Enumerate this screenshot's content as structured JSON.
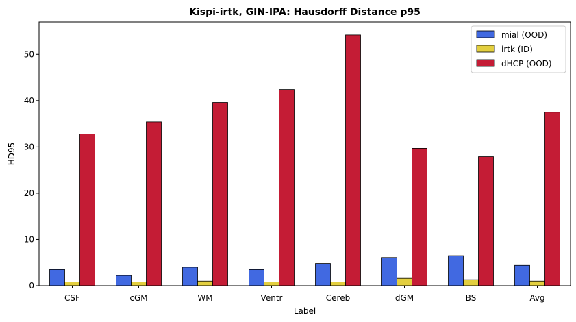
{
  "chart_data": {
    "type": "bar",
    "title": "Kispi-irtk, GIN-IPA: Hausdorff Distance p95",
    "xlabel": "Label",
    "ylabel": "HD95",
    "ylim": [
      0,
      57
    ],
    "yticks": [
      0,
      10,
      20,
      30,
      40,
      50
    ],
    "grid": false,
    "legend_position": "top-right",
    "categories": [
      "CSF",
      "cGM",
      "WM",
      "Ventr",
      "Cereb",
      "dGM",
      "BS",
      "Avg"
    ],
    "series": [
      {
        "name": "mial (OOD)",
        "color": "#4169e1",
        "values": [
          3.5,
          2.2,
          4.0,
          3.5,
          4.8,
          6.1,
          6.5,
          4.4
        ]
      },
      {
        "name": "irtk (ID)",
        "color": "#e3cf3f",
        "values": [
          0.8,
          0.8,
          1.0,
          0.8,
          0.8,
          1.6,
          1.3,
          1.0
        ]
      },
      {
        "name": "dHCP (OOD)",
        "color": "#c41c35",
        "values": [
          32.8,
          35.4,
          39.6,
          42.4,
          54.2,
          29.7,
          27.9,
          37.5
        ]
      }
    ]
  }
}
